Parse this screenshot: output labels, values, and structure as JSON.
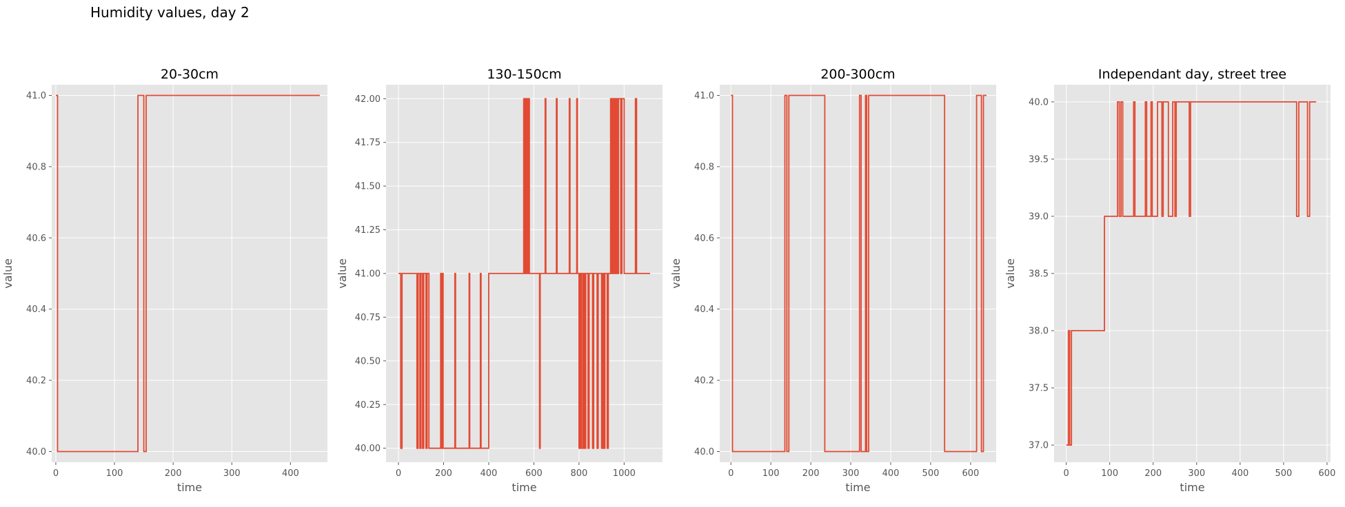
{
  "figure": {
    "suptitle": "Humidity values, day 2"
  },
  "style": {
    "panel_background": "#e5e5e5",
    "grid_color": "#ffffff",
    "line_color": "#e24a33",
    "tick_label_color": "#555555",
    "axis_label_color": "#555555",
    "title_color": "#000000"
  },
  "chart_data": [
    {
      "type": "line",
      "drawstyle": "steps",
      "title": "20-30cm",
      "xlabel": "time",
      "ylabel": "value",
      "grid": true,
      "xlim": [
        -7,
        463
      ],
      "ylim": [
        39.97,
        41.03
      ],
      "xticks": [
        0,
        100,
        200,
        300,
        400
      ],
      "yticks": [
        40.0,
        40.2,
        40.4,
        40.6,
        40.8,
        41.0
      ],
      "yticklabels": [
        "40.0",
        "40.2",
        "40.4",
        "40.6",
        "40.8",
        "41.0"
      ],
      "series": [
        {
          "x": [
            0,
            3,
            140,
            150,
            154,
            450
          ],
          "y": [
            41,
            40,
            41,
            40,
            41,
            41
          ]
        }
      ]
    },
    {
      "type": "line",
      "drawstyle": "steps",
      "title": "130-150cm",
      "xlabel": "time",
      "ylabel": "value",
      "grid": true,
      "xlim": [
        -55,
        1170
      ],
      "ylim": [
        39.92,
        42.08
      ],
      "xticks": [
        0,
        200,
        400,
        600,
        800,
        1000
      ],
      "yticks": [
        40.0,
        40.25,
        40.5,
        40.75,
        41.0,
        41.25,
        41.5,
        41.75,
        42.0
      ],
      "yticklabels": [
        "40.00",
        "40.25",
        "40.50",
        "40.75",
        "41.00",
        "41.25",
        "41.50",
        "41.75",
        "42.00"
      ],
      "series": [
        {
          "x": [
            0,
            10,
            16,
            35,
            82,
            87,
            95,
            100,
            107,
            112,
            122,
            127,
            135,
            187,
            190,
            195,
            198,
            250,
            253,
            313,
            316,
            363,
            366,
            400,
            555,
            558,
            562,
            565,
            568,
            572,
            575,
            580,
            585,
            625,
            628,
            650,
            653,
            700,
            703,
            757,
            760,
            790,
            793,
            800,
            803,
            808,
            812,
            818,
            822,
            826,
            830,
            840,
            845,
            860,
            865,
            880,
            885,
            900,
            905,
            910,
            915,
            925,
            930,
            940,
            944,
            948,
            952,
            955,
            960,
            965,
            970,
            975,
            985,
            990,
            1000,
            1005,
            1050,
            1055,
            1115
          ],
          "y": [
            41,
            40,
            41,
            41,
            40,
            41,
            40,
            41,
            40,
            41,
            40,
            41,
            40,
            41,
            40,
            41,
            40,
            41,
            40,
            41,
            40,
            41,
            40,
            41,
            42,
            41,
            42,
            41,
            42,
            41,
            42,
            41,
            41,
            40,
            41,
            42,
            41,
            42,
            41,
            42,
            41,
            42,
            41,
            40,
            41,
            40,
            41,
            40,
            41,
            40,
            41,
            40,
            41,
            40,
            41,
            40,
            41,
            40,
            41,
            40,
            41,
            40,
            41,
            42,
            41,
            42,
            41,
            42,
            41,
            42,
            41,
            42,
            41,
            42,
            41,
            41,
            42,
            41,
            41
          ]
        }
      ]
    },
    {
      "type": "line",
      "drawstyle": "steps",
      "title": "200-300cm",
      "xlabel": "time",
      "ylabel": "value",
      "grid": true,
      "xlim": [
        -28,
        664
      ],
      "ylim": [
        39.97,
        41.03
      ],
      "xticks": [
        0,
        100,
        200,
        300,
        400,
        500,
        600
      ],
      "yticks": [
        40.0,
        40.2,
        40.4,
        40.6,
        40.8,
        41.0
      ],
      "yticklabels": [
        "40.0",
        "40.2",
        "40.4",
        "40.6",
        "40.8",
        "41.0"
      ],
      "series": [
        {
          "x": [
            0,
            4,
            135,
            140,
            145,
            150,
            235,
            322,
            326,
            337,
            340,
            345,
            350,
            535,
            615,
            627,
            632,
            640
          ],
          "y": [
            41,
            40,
            41,
            40,
            41,
            41,
            40,
            41,
            40,
            41,
            40,
            41,
            41,
            40,
            41,
            40,
            41,
            41
          ]
        }
      ]
    },
    {
      "type": "line",
      "drawstyle": "steps",
      "title": "Independant day, street tree",
      "xlabel": "time",
      "ylabel": "value",
      "grid": true,
      "xlim": [
        -28,
        608
      ],
      "ylim": [
        36.85,
        40.15
      ],
      "xticks": [
        0,
        100,
        200,
        300,
        400,
        500,
        600
      ],
      "yticks": [
        37.0,
        37.5,
        38.0,
        38.5,
        39.0,
        39.5,
        40.0
      ],
      "yticklabels": [
        "37.0",
        "37.5",
        "38.0",
        "38.5",
        "39.0",
        "39.5",
        "40.0"
      ],
      "series": [
        {
          "x": [
            0,
            5,
            8,
            12,
            88,
            118,
            122,
            126,
            130,
            155,
            158,
            182,
            185,
            195,
            198,
            210,
            215,
            220,
            223,
            235,
            245,
            250,
            253,
            283,
            286,
            530,
            535,
            540,
            555,
            560,
            565,
            575
          ],
          "y": [
            37,
            38,
            37,
            38,
            39,
            40,
            39,
            40,
            39,
            40,
            39,
            40,
            39,
            40,
            39,
            40,
            40,
            39,
            40,
            39,
            40,
            39,
            40,
            39,
            40,
            39,
            40,
            40,
            39,
            40,
            40,
            40
          ]
        }
      ]
    }
  ]
}
